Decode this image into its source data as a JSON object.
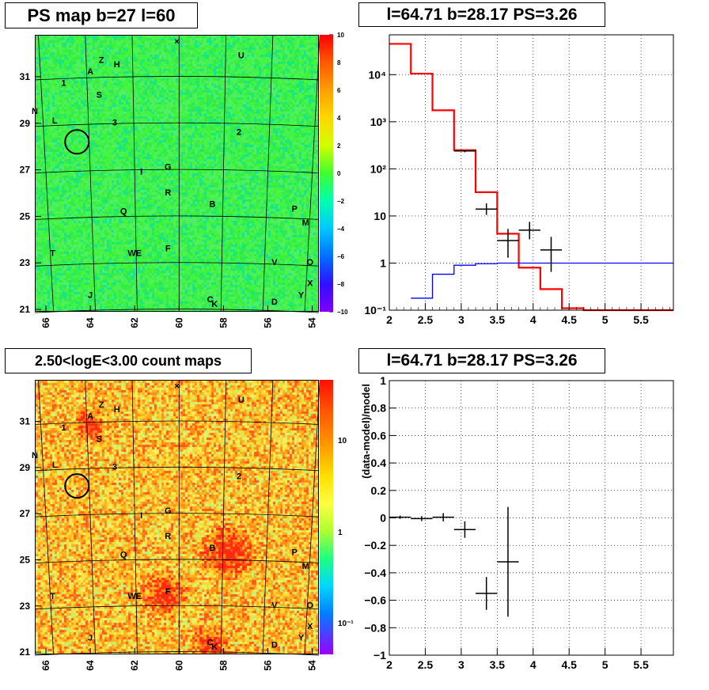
{
  "panels": {
    "ps_map": {
      "title": "PS map b=27 l=60"
    },
    "spectrum": {
      "title": "l=64.71 b=28.17 PS=3.26"
    },
    "count_map": {
      "title": "2.50<logE<3.00 count maps"
    },
    "residual": {
      "title": "l=64.71 b=28.17 PS=3.26"
    }
  },
  "sky_labels": [
    {
      "t": "Z",
      "l": 63.5,
      "b": 31.6
    },
    {
      "t": "H",
      "l": 62.8,
      "b": 31.4
    },
    {
      "t": "U",
      "l": 57.2,
      "b": 31.8
    },
    {
      "t": "A",
      "l": 64.0,
      "b": 31.1
    },
    {
      "t": "1",
      "l": 65.2,
      "b": 30.6
    },
    {
      "t": "S",
      "l": 63.6,
      "b": 30.1
    },
    {
      "t": "N",
      "l": 66.5,
      "b": 29.4
    },
    {
      "t": "L",
      "l": 65.6,
      "b": 29.0
    },
    {
      "t": "3",
      "l": 62.9,
      "b": 28.9
    },
    {
      "t": "2",
      "l": 57.3,
      "b": 28.5
    },
    {
      "t": "G",
      "l": 60.5,
      "b": 27.0
    },
    {
      "t": "I",
      "l": 61.7,
      "b": 26.8
    },
    {
      "t": "R",
      "l": 60.5,
      "b": 25.9
    },
    {
      "t": "B",
      "l": 58.5,
      "b": 25.4
    },
    {
      "t": "P",
      "l": 54.8,
      "b": 25.2
    },
    {
      "t": "Q",
      "l": 62.5,
      "b": 25.1
    },
    {
      "t": "M",
      "l": 54.3,
      "b": 24.6
    },
    {
      "t": "F",
      "l": 60.5,
      "b": 23.5
    },
    {
      "t": "T",
      "l": 65.7,
      "b": 23.3
    },
    {
      "t": "WE",
      "l": 62.0,
      "b": 23.3
    },
    {
      "t": "V",
      "l": 55.7,
      "b": 22.9
    },
    {
      "t": "O",
      "l": 54.1,
      "b": 22.9
    },
    {
      "t": "X",
      "l": 54.1,
      "b": 22.0
    },
    {
      "t": "J",
      "l": 64.0,
      "b": 21.5
    },
    {
      "t": "Y",
      "l": 54.5,
      "b": 21.5
    },
    {
      "t": "C",
      "l": 58.6,
      "b": 21.3
    },
    {
      "t": "D",
      "l": 55.7,
      "b": 21.2
    },
    {
      "t": "K",
      "l": 58.4,
      "b": 21.1
    },
    {
      "t": "×",
      "l": 60.1,
      "b": 32.4
    }
  ],
  "circle_marker": {
    "l": 64.6,
    "b": 28.2
  },
  "sky_axes": {
    "x_ticks": [
      "66",
      "64",
      "62",
      "60",
      "58",
      "56",
      "54"
    ],
    "y_ticks": [
      "31",
      "29",
      "27",
      "25",
      "23",
      "21"
    ]
  },
  "ps_colorbar": {
    "ticks": [
      "10",
      "8",
      "6",
      "4",
      "2",
      "0",
      "−2",
      "−4",
      "−6",
      "−8",
      "−10"
    ],
    "range": [
      -10,
      10
    ]
  },
  "count_colorbar": {
    "ticks": [
      "10",
      "1",
      "10⁻¹"
    ]
  },
  "chart_data": [
    {
      "type": "line",
      "title": "l=64.71 b=28.17 PS=3.26",
      "xlim": [
        2,
        5.95
      ],
      "ylim": [
        0.1,
        70000
      ],
      "log_y": true,
      "grid": true,
      "x_ticks": [
        "2",
        "2.5",
        "3",
        "3.5",
        "4",
        "4.5",
        "5",
        "5.5"
      ],
      "y_ticks": [
        "10⁻¹",
        "1",
        "10",
        "10²",
        "10³",
        "10⁴"
      ],
      "series": [
        {
          "color": "#ff0000",
          "style": "step",
          "edges": [
            2.0,
            2.3,
            2.6,
            2.9,
            3.2,
            3.5,
            3.8,
            4.1,
            4.4,
            4.7,
            5.0,
            5.3,
            5.95
          ],
          "values": [
            45000,
            10500,
            1750,
            250,
            32,
            4.2,
            0.8,
            0.28,
            0.11,
            0.1,
            0.1,
            0.1
          ]
        },
        {
          "color": "#0000ff",
          "style": "step",
          "edges": [
            2.3,
            2.6,
            2.9,
            3.2,
            3.5,
            3.8,
            4.1,
            4.4,
            4.7,
            5.0,
            5.3,
            5.95
          ],
          "values": [
            0.18,
            0.58,
            0.9,
            0.97,
            1.0,
            1.0,
            1.0,
            1.0,
            1.0,
            1.0,
            1.0
          ]
        },
        {
          "color": "#000000",
          "style": "errorbars",
          "points": [
            {
              "x": 3.05,
              "xerr": 0.15,
              "y": 240,
              "ylo": 225,
              "yhi": 255
            },
            {
              "x": 3.35,
              "xerr": 0.15,
              "y": 14,
              "ylo": 10.5,
              "yhi": 18.5
            },
            {
              "x": 3.65,
              "xerr": 0.15,
              "y": 3.0,
              "ylo": 1.3,
              "yhi": 5.3
            },
            {
              "x": 3.95,
              "xerr": 0.15,
              "y": 5.0,
              "ylo": 3.2,
              "yhi": 7.5
            },
            {
              "x": 4.25,
              "xerr": 0.15,
              "y": 1.9,
              "ylo": 0.65,
              "yhi": 3.6
            }
          ]
        }
      ]
    },
    {
      "type": "scatter",
      "title": "l=64.71 b=28.17 PS=3.26",
      "ylabel": "(data-model)/model",
      "xlim": [
        2,
        5.95
      ],
      "ylim": [
        -1,
        1
      ],
      "grid": true,
      "x_ticks": [
        "2",
        "2.5",
        "3",
        "3.5",
        "4",
        "4.5",
        "5",
        "5.5"
      ],
      "y_ticks": [
        "1",
        "0.8",
        "0.6",
        "0.4",
        "0.2",
        "0",
        "−0.2",
        "−0.4",
        "−0.6",
        "−0.8",
        "−1"
      ],
      "points": [
        {
          "x": 2.15,
          "xerr": 0.15,
          "y": 0.005,
          "err": 0.012
        },
        {
          "x": 2.45,
          "xerr": 0.15,
          "y": -0.005,
          "err": 0.018
        },
        {
          "x": 2.75,
          "xerr": 0.15,
          "y": 0.005,
          "err": 0.03
        },
        {
          "x": 3.05,
          "xerr": 0.15,
          "y": -0.085,
          "err": 0.06
        },
        {
          "x": 3.35,
          "xerr": 0.15,
          "y": -0.55,
          "err": 0.12
        },
        {
          "x": 3.65,
          "xerr": 0.15,
          "y": -0.32,
          "err": 0.4
        }
      ]
    }
  ]
}
